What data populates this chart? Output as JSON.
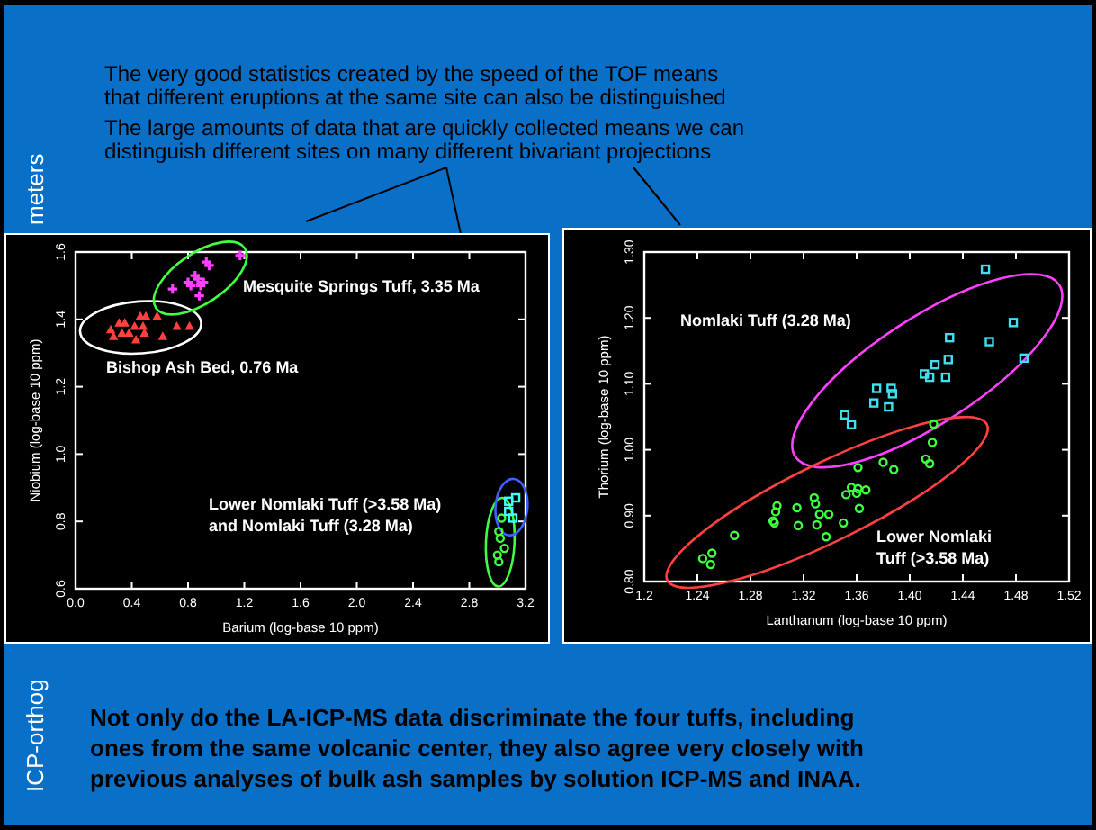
{
  "chart_data": [
    {
      "type": "scatter",
      "xlabel": "Barium (log-base 10 ppm)",
      "ylabel": "Niobium (log-base 10 ppm)",
      "xlim": [
        0,
        3.2
      ],
      "ylim": [
        0.6,
        1.6
      ],
      "xticks": [
        {
          "value": 0,
          "label": "0.0"
        },
        0.4,
        0.8,
        1.2,
        1.6,
        {
          "value": 2,
          "label": "2.0"
        },
        2.4,
        2.8,
        3.2
      ],
      "yticks": [
        0.6,
        0.8,
        {
          "value": 1,
          "label": "1.0"
        },
        1.2,
        1.4,
        1.6
      ],
      "grid": false,
      "series": [
        {
          "color": "#ff4040",
          "marker": "triangle",
          "x": [
            0.31,
            0.25,
            0.27,
            0.35,
            0.38,
            0.42,
            0.46,
            0.5,
            0.58,
            0.48,
            0.43,
            0.49,
            0.62,
            0.72,
            0.81,
            0.33
          ],
          "values": [
            1.39,
            1.37,
            1.35,
            1.39,
            1.36,
            1.38,
            1.41,
            1.41,
            1.41,
            1.38,
            1.34,
            1.36,
            1.35,
            1.38,
            1.38,
            1.36
          ]
        },
        {
          "color": "#ff40ff",
          "marker": "cross",
          "x": [
            1.17,
            0.69,
            0.93,
            0.95,
            0.87,
            0.82,
            0.89,
            0.85,
            0.91,
            0.88,
            0.8
          ],
          "values": [
            1.59,
            1.49,
            1.57,
            1.56,
            1.52,
            1.5,
            1.5,
            1.53,
            1.51,
            1.47,
            1.51
          ]
        },
        {
          "color": "#40ff40",
          "marker": "circle",
          "x": [
            3.0,
            3.02,
            3.03,
            3.05,
            3.01,
            3.01
          ],
          "values": [
            0.7,
            0.75,
            0.81,
            0.72,
            0.77,
            0.68
          ]
        },
        {
          "color": "#40ffff",
          "marker": "square",
          "x": [
            3.08,
            3.11,
            3.08,
            3.13
          ],
          "values": [
            0.86,
            0.81,
            0.83,
            0.87
          ]
        }
      ],
      "annotations": [
        "Mesquite Springs Tuff, 3.35 Ma",
        "Bishop Ash Bed, 0.76 Ma",
        "Lower Nomlaki Tuff (>3.58 Ma)\nand Nomlaki Tuff (3.28 Ma)",
        "The very good statistics created by the speed of the TOF means\nthat different eruptions at the same site can also be distinguished",
        "The large amounts of data that are quickly collected means we can\ndistinguish different sites on many different bivariant projections",
        "Not only do the LA-ICP-MS data discriminate the four tuffs, including\nones from the same volcanic center, they also agree very closely with\nprevious analyses of bulk ash samples by solution ICP-MS and INAA.",
        "meters",
        "ICP-orthog"
      ]
    },
    {
      "type": "scatter",
      "xlabel": "Lanthanum (log-base 10 ppm)",
      "ylabel": "Thorium (log-base 10 ppm)",
      "xlim": [
        1.2,
        1.52
      ],
      "ylim": [
        0.8,
        1.3
      ],
      "xticks": [
        1.2,
        1.24,
        1.28,
        1.32,
        1.36,
        {
          "value": 1.4,
          "label": "1.40"
        },
        1.44,
        1.48,
        1.52
      ],
      "yticks": [
        {
          "value": 0.8,
          "label": "0.80"
        },
        {
          "value": 0.9,
          "label": "0.90"
        },
        {
          "value": 1,
          "label": "1.00"
        },
        {
          "value": 1.1,
          "label": "1.10"
        },
        {
          "value": 1.2,
          "label": "1.20"
        },
        {
          "value": 1.3,
          "label": "1.30"
        }
      ],
      "grid": false,
      "series": [
        {
          "color": "#40e0f0",
          "marker": "square",
          "x": [
            1.457,
            1.478,
            1.46,
            1.43,
            1.486,
            1.429,
            1.419,
            1.411,
            1.415,
            1.427,
            1.375,
            1.386,
            1.387,
            1.373,
            1.384,
            1.351,
            1.356
          ],
          "values": [
            1.274,
            1.193,
            1.164,
            1.17,
            1.139,
            1.137,
            1.129,
            1.115,
            1.11,
            1.11,
            1.093,
            1.093,
            1.085,
            1.071,
            1.065,
            1.053,
            1.038
          ]
        },
        {
          "color": "#40ff40",
          "marker": "circle",
          "x": [
            1.418,
            1.417,
            1.412,
            1.415,
            1.38,
            1.388,
            1.361,
            1.356,
            1.361,
            1.367,
            1.352,
            1.36,
            1.328,
            1.329,
            1.362,
            1.315,
            1.3,
            1.299,
            1.332,
            1.339,
            1.35,
            1.297,
            1.298,
            1.316,
            1.33,
            1.337,
            1.268,
            1.251,
            1.244,
            1.25
          ],
          "values": [
            1.039,
            1.011,
            0.986,
            0.979,
            0.981,
            0.97,
            0.973,
            0.943,
            0.941,
            0.939,
            0.932,
            0.934,
            0.927,
            0.918,
            0.911,
            0.912,
            0.915,
            0.906,
            0.902,
            0.902,
            0.889,
            0.892,
            0.889,
            0.885,
            0.886,
            0.868,
            0.87,
            0.843,
            0.835,
            0.826
          ]
        }
      ],
      "annotations": [
        "Nomlaki Tuff (3.28 Ma)",
        "Lower Nomlaki\nTuff (>3.58 Ma)"
      ]
    }
  ]
}
